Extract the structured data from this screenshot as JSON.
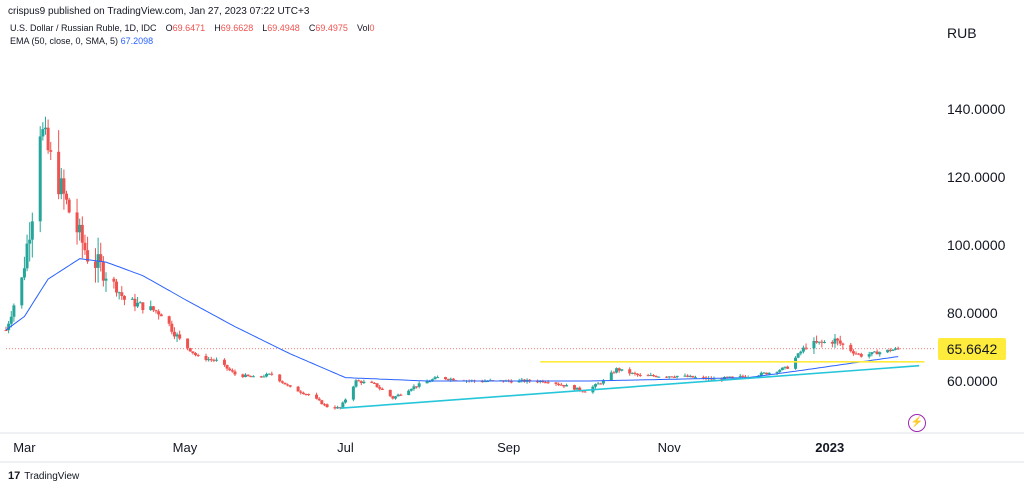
{
  "header": {
    "published": "crispus9 published on TradingView.com, Jan 27, 2023 07:22 UTC+3"
  },
  "legend": {
    "symbol": "U.S. Dollar / Russian Ruble, 1D, IDC",
    "o_label": "O",
    "o_value": "69.6471",
    "h_label": "H",
    "h_value": "69.6628",
    "l_label": "L",
    "l_value": "69.4948",
    "c_label": "C",
    "c_value": "69.4975",
    "vol_label": "Vol",
    "vol_value": "0",
    "ema_label": "EMA (50, close, 0, SMA, 5)",
    "ema_value": "67.2098"
  },
  "footer": {
    "brand": "TradingView"
  },
  "chart_data": {
    "type": "candlestick",
    "currency": "RUB",
    "y_ticks": [
      "140.0000",
      "120.0000",
      "100.0000",
      "80.0000",
      "60.0000"
    ],
    "y_tick_values": [
      140,
      120,
      100,
      80,
      60
    ],
    "x_ticks": [
      "Mar",
      "May",
      "Jul",
      "Sep",
      "Nov",
      "2023"
    ],
    "x_tick_dates": [
      "2022-03-01",
      "2022-05-01",
      "2022-07-01",
      "2022-09-01",
      "2022-11-01",
      "2023-01-01"
    ],
    "ylim": [
      45,
      158
    ],
    "xlim": [
      "2022-02-22",
      "2023-02-10"
    ],
    "current_price": 69.4975,
    "highlight_level": {
      "label": "65.6642",
      "value": 65.6642,
      "color": "#ffeb3b"
    },
    "ohlc_keypoints": [
      [
        "2022-02-22",
        75
      ],
      [
        "2022-02-28",
        90
      ],
      [
        "2022-03-04",
        110
      ],
      [
        "2022-03-07",
        135
      ],
      [
        "2022-03-11",
        125
      ],
      [
        "2022-03-18",
        110
      ],
      [
        "2022-03-25",
        97
      ],
      [
        "2022-04-01",
        92
      ],
      [
        "2022-04-08",
        84
      ],
      [
        "2022-04-15",
        82
      ],
      [
        "2022-04-22",
        80
      ],
      [
        "2022-04-29",
        72
      ],
      [
        "2022-05-06",
        67
      ],
      [
        "2022-05-13",
        66
      ],
      [
        "2022-05-20",
        62
      ],
      [
        "2022-05-27",
        61
      ],
      [
        "2022-06-03",
        62
      ],
      [
        "2022-06-10",
        58
      ],
      [
        "2022-06-17",
        56
      ],
      [
        "2022-06-24",
        52.5
      ],
      [
        "2022-06-29",
        52
      ],
      [
        "2022-07-05",
        60
      ],
      [
        "2022-07-12",
        59
      ],
      [
        "2022-07-19",
        55
      ],
      [
        "2022-07-26",
        58
      ],
      [
        "2022-08-05",
        61
      ],
      [
        "2022-08-19",
        60
      ],
      [
        "2022-09-02",
        60
      ],
      [
        "2022-09-16",
        60
      ],
      [
        "2022-09-30",
        57
      ],
      [
        "2022-10-07",
        60
      ],
      [
        "2022-10-12",
        63.5
      ],
      [
        "2022-10-21",
        61.5
      ],
      [
        "2022-11-04",
        61.5
      ],
      [
        "2022-11-18",
        60.5
      ],
      [
        "2022-12-02",
        61.5
      ],
      [
        "2022-12-09",
        62.5
      ],
      [
        "2022-12-16",
        64
      ],
      [
        "2022-12-23",
        70.5
      ],
      [
        "2022-12-28",
        71
      ],
      [
        "2023-01-03",
        72
      ],
      [
        "2023-01-10",
        68.5
      ],
      [
        "2023-01-13",
        67.5
      ],
      [
        "2023-01-20",
        68.5
      ],
      [
        "2023-01-27",
        69.5
      ]
    ],
    "ema_keypoints": [
      [
        "2022-02-22",
        75
      ],
      [
        "2022-03-01",
        79
      ],
      [
        "2022-03-10",
        90
      ],
      [
        "2022-03-22",
        96
      ],
      [
        "2022-04-01",
        95
      ],
      [
        "2022-04-15",
        91
      ],
      [
        "2022-05-01",
        84
      ],
      [
        "2022-05-20",
        76
      ],
      [
        "2022-06-10",
        68
      ],
      [
        "2022-07-01",
        61
      ],
      [
        "2022-08-01",
        60
      ],
      [
        "2022-09-01",
        60
      ],
      [
        "2022-10-01",
        60
      ],
      [
        "2022-11-01",
        60.5
      ],
      [
        "2022-12-01",
        61
      ],
      [
        "2022-12-20",
        63
      ],
      [
        "2023-01-27",
        67.2
      ]
    ],
    "trendlines": [
      {
        "color": "#26c6da",
        "start": [
          "2022-06-29",
          52
        ],
        "end": [
          "2023-02-04",
          64.5
        ]
      },
      {
        "color": "#ffeb3b",
        "start": [
          "2022-09-13",
          65.6642
        ],
        "end": [
          "2023-02-06",
          65.6642
        ]
      }
    ]
  }
}
